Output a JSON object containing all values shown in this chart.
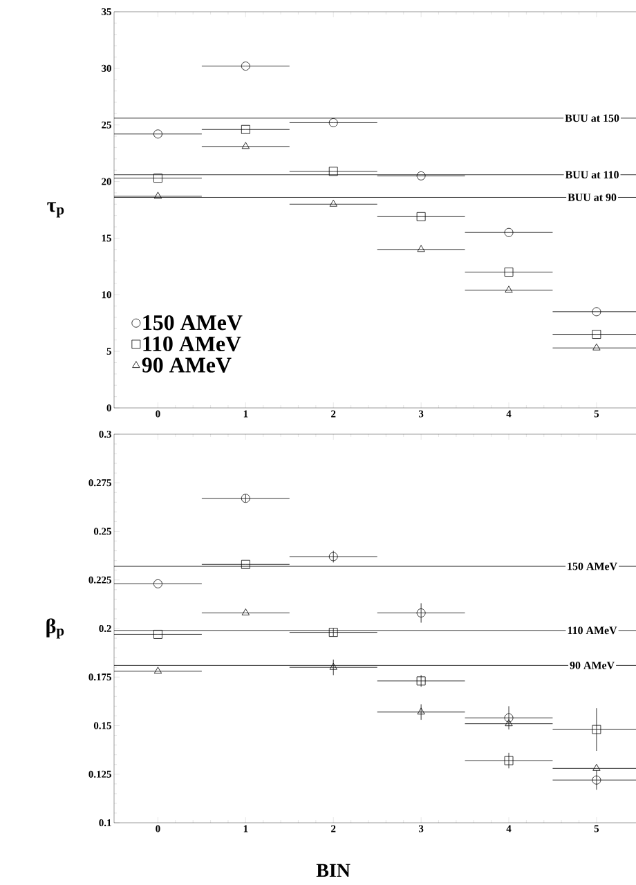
{
  "chart_data": [
    {
      "type": "scatter",
      "ylabel": "τ$_{p}$",
      "x": [
        0,
        1,
        2,
        3,
        4,
        5
      ],
      "xlim": [
        -0.5,
        5.45
      ],
      "xticks": [
        0,
        1,
        2,
        3,
        4,
        5
      ],
      "ylim": [
        0,
        35
      ],
      "yticks": [
        0,
        5,
        10,
        15,
        20,
        25,
        30,
        35
      ],
      "legend": "bottom left",
      "grid": false,
      "series": [
        {
          "name": "150 AMeV",
          "color": "#000000",
          "marker": "circle",
          "values": [
            24.2,
            30.2,
            25.2,
            20.5,
            15.5,
            8.5
          ],
          "xerrors": [
            0.5,
            0.5,
            0.5,
            0.5,
            0.5,
            0.5
          ]
        },
        {
          "name": "110 AMeV",
          "color": "#000000",
          "marker": "square",
          "values": [
            20.3,
            24.6,
            20.9,
            16.9,
            12.0,
            6.5
          ],
          "xerrors": [
            0.5,
            0.5,
            0.5,
            0.5,
            0.5,
            0.5
          ]
        },
        {
          "name": "90 AMeV",
          "color": "#000000",
          "marker": "triangle",
          "values": [
            18.7,
            23.1,
            18.0,
            14.0,
            10.4,
            5.3
          ],
          "xerrors": [
            0.5,
            0.5,
            0.5,
            0.5,
            0.5,
            0.5
          ]
        }
      ],
      "ref_lines": [
        {
          "axis": "y",
          "value": 25.6,
          "label": "BUU at 150"
        },
        {
          "axis": "y",
          "value": 20.6,
          "label": "BUU at 110"
        },
        {
          "axis": "y",
          "value": 18.6,
          "label": "BUU at 90"
        }
      ]
    },
    {
      "type": "scatter",
      "ylabel": "β$_{p}$",
      "xlabel": "BIN",
      "x": [
        0,
        1,
        2,
        3,
        4,
        5
      ],
      "xlim": [
        -0.5,
        5.45
      ],
      "xticks": [
        0,
        1,
        2,
        3,
        4,
        5
      ],
      "ylim": [
        0.1,
        0.3
      ],
      "yticks": [
        0.1,
        0.125,
        0.15,
        0.175,
        0.2,
        0.225,
        0.25,
        0.275,
        0.3
      ],
      "grid": false,
      "series": [
        {
          "color": "#000000",
          "marker": "circle",
          "values": [
            0.223,
            0.267,
            0.237,
            0.208,
            0.154,
            0.122
          ],
          "xerrors": [
            0.5,
            0.5,
            0.5,
            0.5,
            0.5,
            0.5
          ],
          "errors": [
            null,
            0.002,
            0.003,
            0.005,
            0.006,
            0.005
          ]
        },
        {
          "color": "#000000",
          "marker": "square",
          "values": [
            0.197,
            0.233,
            0.198,
            0.173,
            0.132,
            0.148
          ],
          "xerrors": [
            0.5,
            0.5,
            0.5,
            0.5,
            0.5,
            0.5
          ],
          "errors": [
            null,
            null,
            0.002,
            0.003,
            0.004,
            0.011
          ]
        },
        {
          "color": "#000000",
          "marker": "triangle",
          "values": [
            0.178,
            0.208,
            0.18,
            0.157,
            0.151,
            0.128
          ],
          "xerrors": [
            0.5,
            0.5,
            0.5,
            0.5,
            0.5,
            0.5
          ],
          "errors": [
            null,
            null,
            0.004,
            0.004,
            null,
            null
          ]
        }
      ],
      "ref_lines": [
        {
          "axis": "y",
          "value": 0.232,
          "label": "150 AMeV"
        },
        {
          "axis": "y",
          "value": 0.199,
          "label": "110 AMeV"
        },
        {
          "axis": "y",
          "value": 0.181,
          "label": "90 AMeV"
        }
      ]
    }
  ]
}
